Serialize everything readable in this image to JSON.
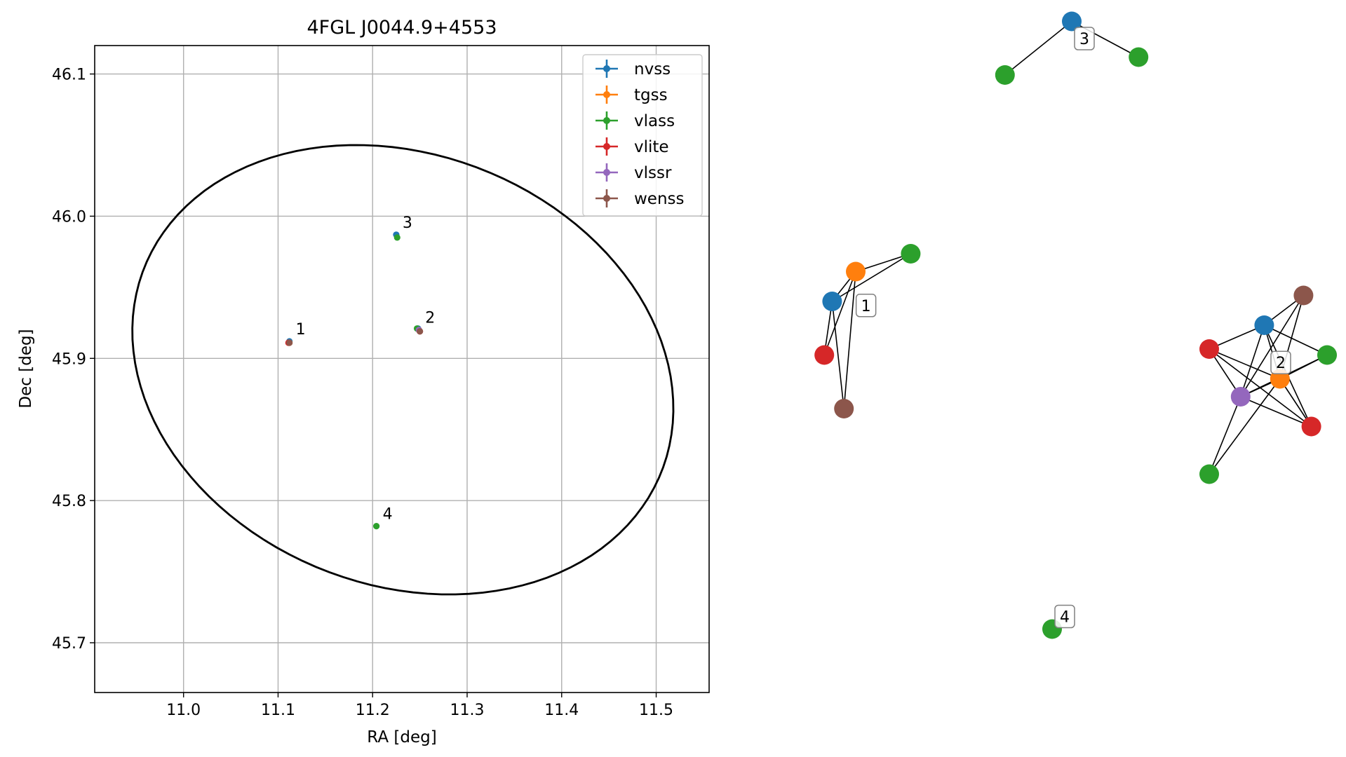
{
  "chart_data": [
    {
      "type": "scatter",
      "title": "4FGL J0044.9+4553",
      "xlabel": "RA [deg]",
      "ylabel": "Dec [deg]",
      "xlim": [
        10.906,
        11.556
      ],
      "ylim": [
        45.665,
        46.12
      ],
      "xticks": [
        11.0,
        11.1,
        11.2,
        11.3,
        11.4,
        11.5
      ],
      "yticks": [
        45.7,
        45.8,
        45.9,
        46.0,
        46.1
      ],
      "grid": true,
      "legend_position": "top-right",
      "series": [
        {
          "name": "nvss",
          "color": "#1f77b4",
          "points": [
            [
              11.112,
              45.912
            ],
            [
              11.248,
              45.921
            ],
            [
              11.225,
              45.987
            ]
          ]
        },
        {
          "name": "tgss",
          "color": "#ff7f0e",
          "points": [
            [
              11.112,
              45.911
            ],
            [
              11.249,
              45.92
            ]
          ]
        },
        {
          "name": "vlass",
          "color": "#2ca02c",
          "points": [
            [
              11.226,
              45.985
            ],
            [
              11.247,
              45.921
            ],
            [
              11.204,
              45.782
            ]
          ]
        },
        {
          "name": "vlite",
          "color": "#d62728",
          "points": [
            [
              11.111,
              45.911
            ],
            [
              11.25,
              45.919
            ]
          ]
        },
        {
          "name": "vlssr",
          "color": "#9467bd",
          "points": [
            [
              11.249,
              45.92
            ]
          ]
        },
        {
          "name": "wenss",
          "color": "#8c564b",
          "points": [
            [
              11.112,
              45.911
            ],
            [
              11.25,
              45.919
            ]
          ]
        }
      ],
      "annotations": [
        {
          "text": "1",
          "x": 11.112,
          "y": 45.912
        },
        {
          "text": "2",
          "x": 11.249,
          "y": 45.92
        },
        {
          "text": "3",
          "x": 11.225,
          "y": 45.987
        },
        {
          "text": "4",
          "x": 11.204,
          "y": 45.782
        }
      ],
      "ellipse": {
        "center": [
          11.232,
          45.892
        ],
        "width_deg": 0.33,
        "height_deg": 0.27,
        "angle_deg": -60
      }
    },
    {
      "type": "network",
      "groups": [
        {
          "label": "1",
          "nodes": [
            {
              "id": "n1a",
              "catalog": "nvss",
              "x": 1.0,
              "y": 4.5
            },
            {
              "id": "n1b",
              "catalog": "tgss",
              "x": 1.3,
              "y": 5.0
            },
            {
              "id": "n1c",
              "catalog": "vlass",
              "x": 2.0,
              "y": 5.3
            },
            {
              "id": "n1d",
              "catalog": "vlite",
              "x": 0.9,
              "y": 3.6
            },
            {
              "id": "n1e",
              "catalog": "wenss",
              "x": 1.15,
              "y": 2.7
            }
          ],
          "edges": [
            [
              "n1a",
              "n1b"
            ],
            [
              "n1a",
              "n1c"
            ],
            [
              "n1b",
              "n1c"
            ],
            [
              "n1a",
              "n1d"
            ],
            [
              "n1b",
              "n1d"
            ],
            [
              "n1b",
              "n1e"
            ],
            [
              "n1a",
              "n1e"
            ]
          ]
        },
        {
          "label": "2",
          "nodes": [
            {
              "id": "n2a",
              "catalog": "nvss",
              "x": 6.5,
              "y": 4.1
            },
            {
              "id": "n2b",
              "catalog": "tgss",
              "x": 6.7,
              "y": 3.2
            },
            {
              "id": "n2c",
              "catalog": "vlass",
              "x": 7.3,
              "y": 3.6
            },
            {
              "id": "n2d",
              "catalog": "vlite",
              "x": 5.8,
              "y": 3.7
            },
            {
              "id": "n2e",
              "catalog": "vlite",
              "x": 7.1,
              "y": 2.4
            },
            {
              "id": "n2f",
              "catalog": "vlssr",
              "x": 6.2,
              "y": 2.9
            },
            {
              "id": "n2g",
              "catalog": "wenss",
              "x": 7.0,
              "y": 4.6
            },
            {
              "id": "n2h",
              "catalog": "vlass",
              "x": 5.8,
              "y": 1.6
            }
          ],
          "edges": [
            [
              "n2a",
              "n2b"
            ],
            [
              "n2a",
              "n2c"
            ],
            [
              "n2a",
              "n2d"
            ],
            [
              "n2a",
              "n2e"
            ],
            [
              "n2a",
              "n2f"
            ],
            [
              "n2a",
              "n2g"
            ],
            [
              "n2b",
              "n2c"
            ],
            [
              "n2b",
              "n2d"
            ],
            [
              "n2b",
              "n2e"
            ],
            [
              "n2b",
              "n2f"
            ],
            [
              "n2b",
              "n2g"
            ],
            [
              "n2c",
              "n2f"
            ],
            [
              "n2d",
              "n2e"
            ],
            [
              "n2d",
              "n2f"
            ],
            [
              "n2e",
              "n2f"
            ],
            [
              "n2f",
              "n2g"
            ],
            [
              "n2f",
              "n2h"
            ],
            [
              "n2b",
              "n2h"
            ]
          ]
        },
        {
          "label": "3",
          "nodes": [
            {
              "id": "n3a",
              "catalog": "nvss",
              "x": 4.05,
              "y": 9.2
            },
            {
              "id": "n3b",
              "catalog": "vlass",
              "x": 3.2,
              "y": 8.3
            },
            {
              "id": "n3c",
              "catalog": "vlass",
              "x": 4.9,
              "y": 8.6
            }
          ],
          "edges": [
            [
              "n3a",
              "n3b"
            ],
            [
              "n3a",
              "n3c"
            ]
          ]
        },
        {
          "label": "4",
          "nodes": [
            {
              "id": "n4a",
              "catalog": "vlass",
              "x": 3.8,
              "y": -1.0
            }
          ],
          "edges": []
        }
      ]
    }
  ],
  "colors": {
    "nvss": "#1f77b4",
    "tgss": "#ff7f0e",
    "vlass": "#2ca02c",
    "vlite": "#d62728",
    "vlssr": "#9467bd",
    "wenss": "#8c564b",
    "grid": "#b0b0b0",
    "edge": "#000000"
  }
}
